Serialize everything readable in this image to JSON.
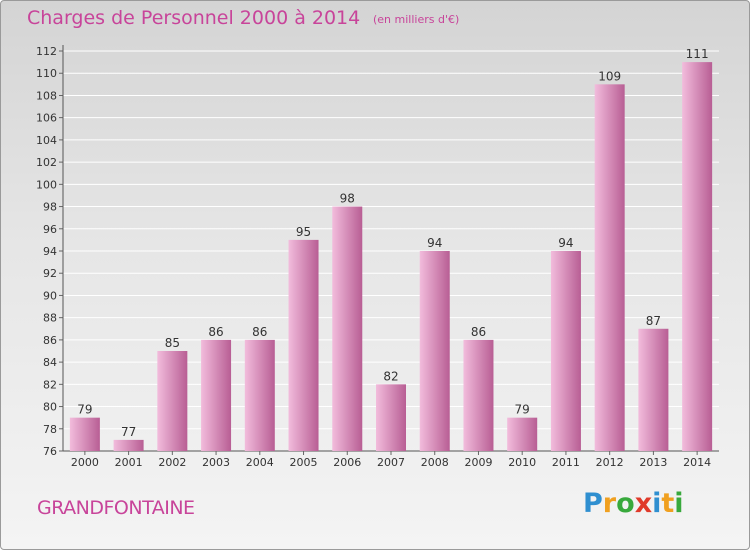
{
  "title": "Charges de Personnel 2000 à 2014",
  "subtitle": "(en milliers d'€)",
  "location": "GRANDFONTAINE",
  "logo": {
    "letters": [
      "P",
      "r",
      "o",
      "x",
      "i",
      "t",
      "i"
    ],
    "colors": [
      "#2f8fd0",
      "#f0a020",
      "#38a93c",
      "#e03a2a",
      "#2f8fd0",
      "#f0a020",
      "#38a93c"
    ]
  },
  "colors": {
    "bar_light": "#f2bcdc",
    "bar_dark": "#b85e94",
    "text": "#c8449a"
  },
  "chart_data": {
    "type": "bar",
    "categories": [
      "2000",
      "2001",
      "2002",
      "2003",
      "2004",
      "2005",
      "2006",
      "2007",
      "2008",
      "2009",
      "2010",
      "2011",
      "2012",
      "2013",
      "2014"
    ],
    "values": [
      79,
      77,
      85,
      86,
      86,
      95,
      98,
      82,
      94,
      86,
      79,
      94,
      109,
      87,
      111
    ],
    "ylim": [
      76,
      112
    ],
    "yticks": [
      76,
      78,
      80,
      82,
      84,
      86,
      88,
      90,
      92,
      94,
      96,
      98,
      100,
      102,
      104,
      106,
      108,
      110,
      112
    ],
    "grid": true,
    "data_labels": true
  }
}
